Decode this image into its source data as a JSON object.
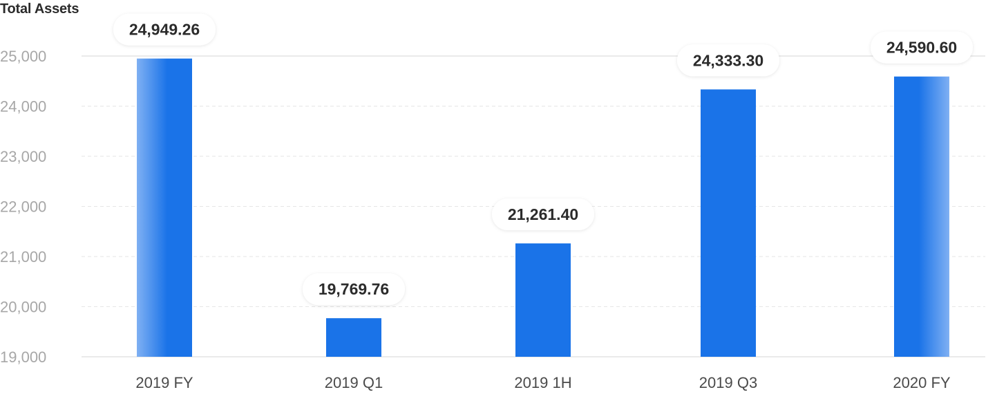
{
  "chart_data": {
    "type": "bar",
    "title": "Total Assets",
    "xlabel": "",
    "ylabel": "",
    "categories": [
      "2019 FY",
      "2019 Q1",
      "2019 1H",
      "2019 Q3",
      "2020 FY"
    ],
    "values": [
      24949.26,
      19769.76,
      21261.4,
      24333.3,
      24590.6
    ],
    "value_labels": [
      "24,949.26",
      "19,769.76",
      "21,261.40",
      "24,333.30",
      "24,590.60"
    ],
    "ylim": [
      19000,
      25000
    ],
    "yticks": [
      19000,
      20000,
      21000,
      22000,
      23000,
      24000,
      25000
    ],
    "ytick_labels": [
      "19,000",
      "20,000",
      "21,000",
      "22,000",
      "23,000",
      "24,000",
      "25,000"
    ],
    "grid": true,
    "legend": "none",
    "colors": {
      "bar": "#1a73e8",
      "bar_light": "#7fb0f3",
      "grid": "#e6e6e6",
      "tick_text": "#a7a7a7",
      "category_text": "#4a4a4a",
      "value_text": "#2b2b2b"
    }
  }
}
